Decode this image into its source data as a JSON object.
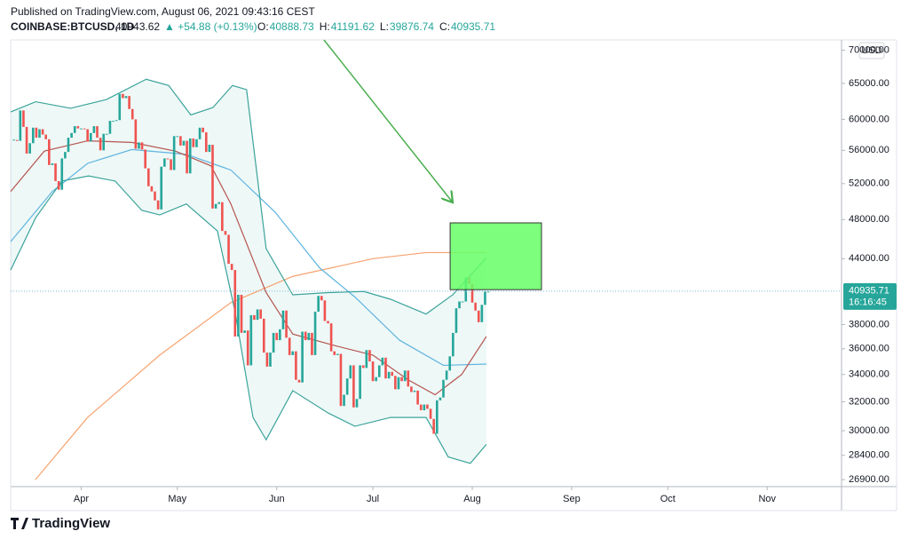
{
  "chart_data": {
    "type": "candlestick",
    "title": "Published on TradingView.com, August 06, 2021 09:43:16 CEST",
    "symbol": "COINBASE:BTCUSD, 1D",
    "last": 40943.62,
    "change": "▲ +54.88 (+0.13%)",
    "ohlc": [
      {
        "label": "O:",
        "value": 40888.73
      },
      {
        "label": "H:",
        "value": 41191.62
      },
      {
        "label": "L:",
        "value": 39876.74
      },
      {
        "label": "C:",
        "value": 40935.71
      }
    ],
    "currency": "USD",
    "brand": "TradingView",
    "price_tag": {
      "value": 40935.71,
      "countdown": "16:16:45",
      "color": "#26a69a"
    },
    "log_scale": true,
    "xlim": [
      69,
      328.2
    ],
    "ylim": [
      26490,
      71600
    ],
    "xticks": [
      {
        "value": 91,
        "label": "Apr"
      },
      {
        "value": 121,
        "label": "May"
      },
      {
        "value": 152,
        "label": "Jun"
      },
      {
        "value": 182,
        "label": "Jul"
      },
      {
        "value": 213,
        "label": "Aug"
      },
      {
        "value": 244,
        "label": "Sep"
      },
      {
        "value": 274,
        "label": "Oct"
      },
      {
        "value": 305,
        "label": "Nov"
      }
    ],
    "yticks": [
      {
        "value": 26900,
        "label": "26900.00"
      },
      {
        "value": 28400,
        "label": "28400.00"
      },
      {
        "value": 30000,
        "label": "30000.00"
      },
      {
        "value": 32000,
        "label": "32000.00"
      },
      {
        "value": 34000,
        "label": "34000.00"
      },
      {
        "value": 36000,
        "label": "36000.00"
      },
      {
        "value": 38000,
        "label": "38000.00"
      },
      {
        "value": 44000,
        "label": "44000.00"
      },
      {
        "value": 48000,
        "label": "48000.00"
      },
      {
        "value": 52000,
        "label": "52000.00"
      },
      {
        "value": 56000,
        "label": "56000.00"
      },
      {
        "value": 60000,
        "label": "60000.00"
      },
      {
        "value": 65000,
        "label": "65000.00"
      },
      {
        "value": 70000,
        "label": "70000.00"
      }
    ],
    "price": {
      "up_color": "#26a69a",
      "down_color": "#ef5350",
      "x": [
        70,
        71,
        72,
        73,
        74,
        75,
        76,
        77,
        78,
        79,
        80,
        81,
        82,
        83,
        84,
        85,
        86,
        87,
        88,
        89,
        90,
        91,
        92,
        93,
        94,
        95,
        96,
        97,
        98,
        99,
        100,
        101,
        102,
        103,
        104,
        105,
        106,
        107,
        108,
        109,
        110,
        111,
        112,
        113,
        114,
        115,
        116,
        117,
        118,
        119,
        120,
        121,
        122,
        123,
        124,
        125,
        126,
        127,
        128,
        129,
        130,
        131,
        132,
        133,
        134,
        135,
        136,
        137,
        138,
        139,
        140,
        141,
        142,
        143,
        144,
        145,
        146,
        147,
        148,
        149,
        150,
        151,
        152,
        153,
        154,
        155,
        156,
        157,
        158,
        159,
        160,
        161,
        162,
        163,
        164,
        165,
        166,
        167,
        168,
        169,
        170,
        171,
        172,
        173,
        174,
        175,
        176,
        177,
        178,
        179,
        180,
        181,
        182,
        183,
        184,
        185,
        186,
        187,
        188,
        189,
        190,
        191,
        192,
        193,
        194,
        195,
        196,
        197,
        198,
        199,
        200,
        201,
        202,
        203,
        204,
        205,
        206,
        207,
        208,
        209,
        210,
        211,
        212,
        213,
        214,
        215,
        216,
        217,
        218
      ],
      "values": [
        57300,
        57200,
        61200,
        59000,
        55600,
        56900,
        58900,
        57600,
        58700,
        58000,
        57400,
        54200,
        54400,
        52300,
        51300,
        55000,
        55800,
        57600,
        58200,
        59100,
        58800,
        58800,
        58700,
        57100,
        58200,
        59100,
        57600,
        56000,
        58100,
        58100,
        59800,
        59800,
        59900,
        63500,
        62900,
        63200,
        61400,
        60000,
        56200,
        57000,
        56100,
        53800,
        51700,
        51100,
        50100,
        49100,
        54000,
        55000,
        54900,
        53600,
        57800,
        57800,
        56600,
        57200,
        53200,
        57500,
        56400,
        57400,
        58900,
        58300,
        55800,
        56700,
        49200,
        49700,
        49900,
        46800,
        46400,
        43500,
        42900,
        37000,
        40600,
        37300,
        37500,
        34700,
        38800,
        38400,
        39300,
        38500,
        35700,
        34600,
        35700,
        37300,
        36700,
        37600,
        39200,
        36900,
        35500,
        35800,
        33600,
        33400,
        37400,
        36700,
        37300,
        35500,
        39100,
        40500,
        40100,
        38300,
        38100,
        35800,
        35500,
        35600,
        31700,
        32500,
        33700,
        34700,
        31600,
        32200,
        34700,
        34500,
        35900,
        35000,
        33500,
        33800,
        34700,
        35300,
        33700,
        34200,
        33900,
        32900,
        33800,
        33500,
        34300,
        33100,
        32700,
        32800,
        31800,
        31400,
        31800,
        31500,
        30800,
        29800,
        32100,
        32300,
        33600,
        34300,
        35400,
        37300,
        39400,
        40000,
        40000,
        42200,
        41600,
        39900,
        39200,
        38200,
        39700,
        40900,
        40900
      ]
    },
    "band_fill": "rgba(38,166,154,0.08)",
    "overlays": [
      {
        "color": "#f7a26e",
        "x": [
          76.7,
          93,
          115.5,
          137.7,
          157,
          182,
          198.6,
          217.4
        ],
        "values": [
          26900,
          30900,
          35500,
          39900,
          42300,
          44000,
          44600,
          44600
        ]
      },
      {
        "color": "#5fb4e0",
        "x": [
          69,
          82,
          93,
          106.8,
          123.8,
          137.7,
          151.5,
          165.4,
          176.4,
          190.3,
          204,
          217.4
        ],
        "values": [
          45700,
          51100,
          54400,
          56100,
          55500,
          53600,
          48800,
          43100,
          40400,
          36700,
          34700,
          34800
        ]
      },
      {
        "color": "#b5554f",
        "x": [
          69,
          79.5,
          93,
          106.8,
          120.4,
          131.5,
          137.7,
          148.7,
          157,
          171,
          182,
          193,
          201.4,
          209.7,
          217.4
        ],
        "values": [
          51100,
          55900,
          57200,
          57000,
          55900,
          54100,
          49700,
          40800,
          37200,
          36200,
          35500,
          33600,
          32500,
          34000,
          37000
        ]
      },
      {
        "color": "#3aa39a",
        "x": [
          69,
          76.8,
          87.7,
          98.8,
          111.3,
          118.3,
          125.2,
          132.1,
          138.2,
          142.6,
          148.7,
          157,
          168.1,
          179.2,
          187.5,
          198.6,
          206.9,
          217.4
        ],
        "values": [
          61000,
          62400,
          61500,
          62700,
          65600,
          64700,
          60600,
          61600,
          64700,
          64100,
          45000,
          40600,
          40800,
          40900,
          40200,
          38900,
          40600,
          44100
        ]
      },
      {
        "color": "#3aa39a",
        "x": [
          69,
          76.8,
          85,
          93.3,
          101.6,
          109.9,
          115.5,
          123.8,
          133.5,
          139,
          144.6,
          148.7,
          157,
          168.1,
          176.4,
          187.5,
          198.6,
          205.5,
          212.4,
          217.4
        ],
        "values": [
          42900,
          48200,
          52300,
          52900,
          52300,
          49000,
          48500,
          49700,
          46800,
          39100,
          30900,
          29400,
          32800,
          31200,
          30300,
          30900,
          30900,
          28300,
          27900,
          29100
        ]
      }
    ],
    "box": {
      "x": [
        206.1,
        234.6
      ],
      "y": [
        41070,
        47650
      ],
      "color": "#66ff66"
    }
  }
}
